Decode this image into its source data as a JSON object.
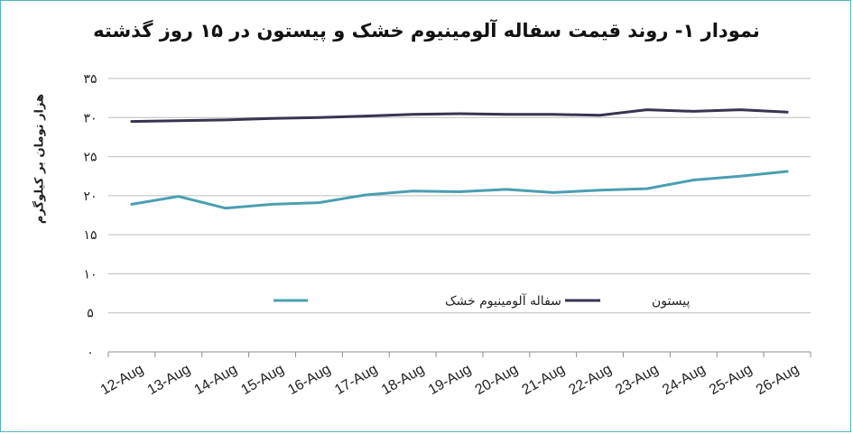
{
  "title": "نمودار ۱- روند قیمت سفاله آلومینیوم خشک و پیستون در ۱۵ روز گذشته",
  "chart_data": {
    "type": "line",
    "title": "نمودار ۱- روند قیمت سفاله آلومینیوم خشک و پیستون در ۱۵ روز گذشته",
    "xlabel": "",
    "ylabel": "هزار تومان بر کیلوگرم",
    "ylim": [
      0,
      35
    ],
    "yticks": [
      0,
      5,
      10,
      15,
      20,
      25,
      30,
      35
    ],
    "ytick_labels": [
      "۰",
      "۵",
      "۱۰",
      "۱۵",
      "۲۰",
      "۲۵",
      "۳۰",
      "۳۵"
    ],
    "categories": [
      "12-Aug",
      "13-Aug",
      "14-Aug",
      "15-Aug",
      "16-Aug",
      "17-Aug",
      "18-Aug",
      "19-Aug",
      "20-Aug",
      "21-Aug",
      "22-Aug",
      "23-Aug",
      "24-Aug",
      "25-Aug",
      "26-Aug"
    ],
    "grid": "horizontal",
    "legend_position": "bottom-inside",
    "series": [
      {
        "name": "سفاله آلومینیوم خشک",
        "color": "#4a9fb0",
        "values": [
          18.9,
          19.9,
          18.4,
          18.9,
          19.1,
          20.1,
          20.6,
          20.5,
          20.8,
          20.4,
          20.7,
          20.9,
          22.0,
          22.5,
          23.1
        ]
      },
      {
        "name": "پیستون",
        "color": "#3a3350",
        "values": [
          29.5,
          29.6,
          29.7,
          29.9,
          30.0,
          30.2,
          30.4,
          30.5,
          30.4,
          30.4,
          30.3,
          31.0,
          30.8,
          31.0,
          30.7
        ]
      }
    ]
  }
}
